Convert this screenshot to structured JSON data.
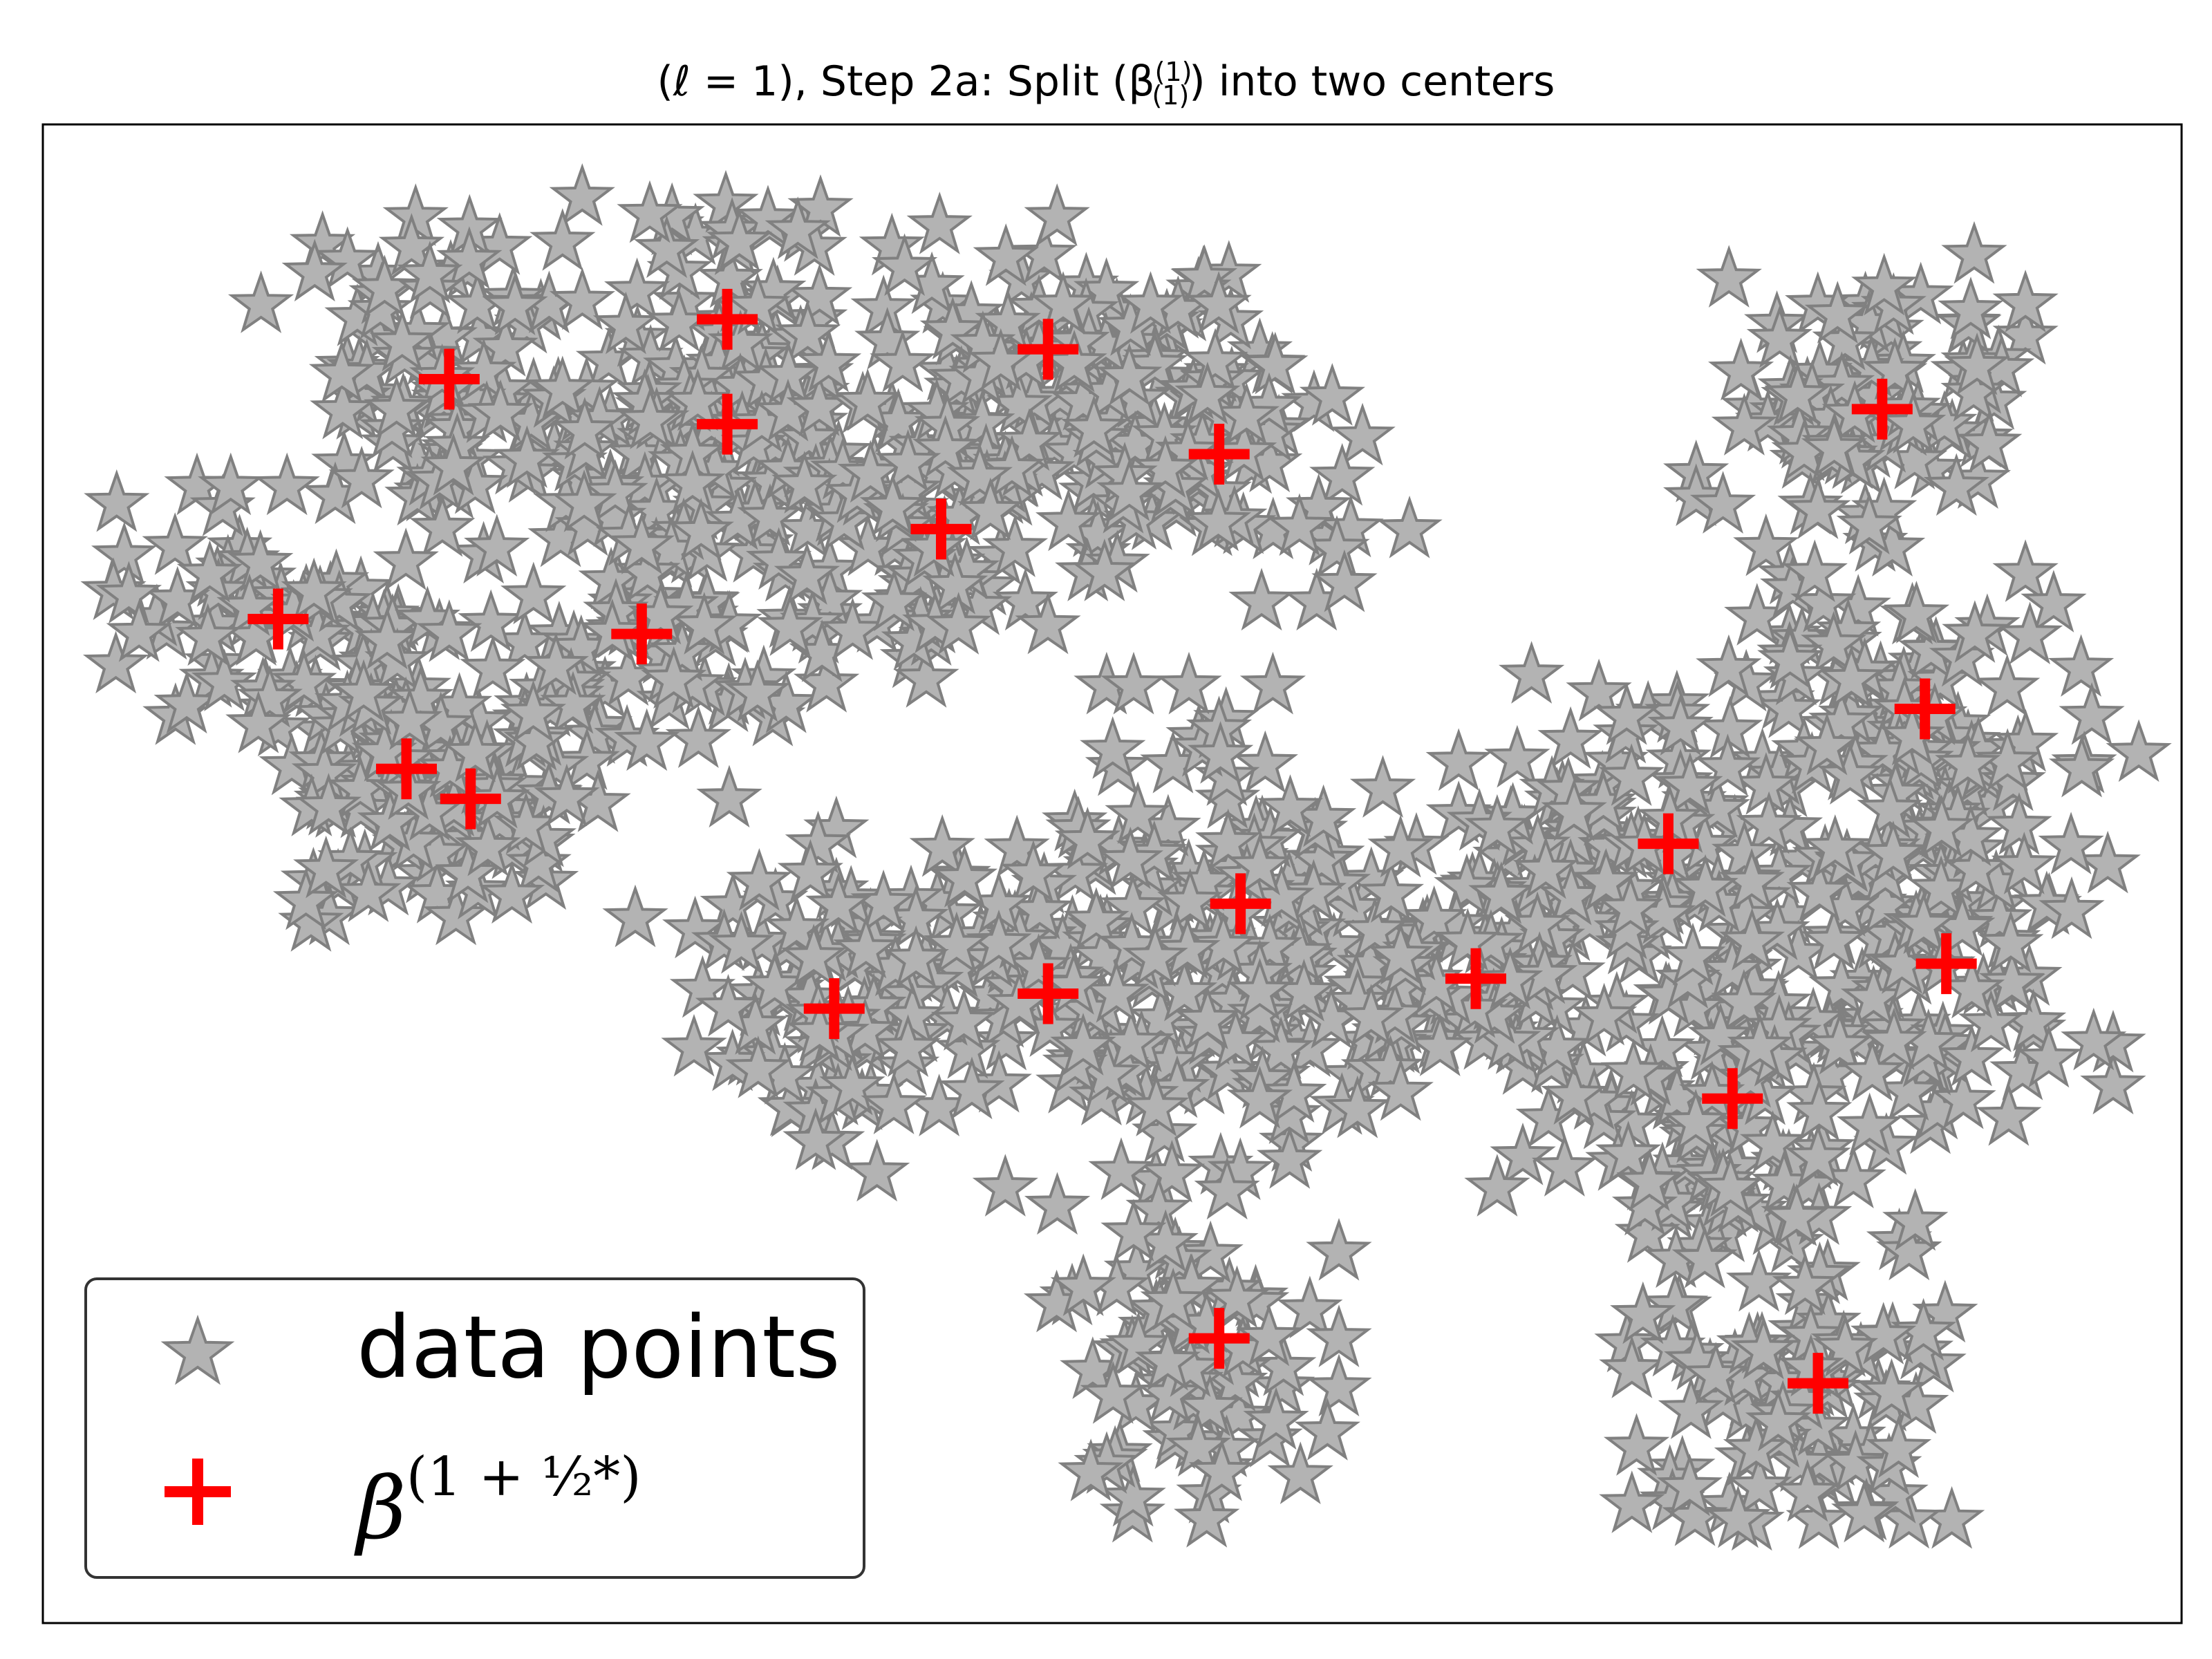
{
  "chart_data": {
    "type": "scatter",
    "title_text": "(ℓ = 1), Step 2a: Split (β",
    "title_sup": "(1)",
    "title_sub": "(1)",
    "title_tail": ") into two centers",
    "xlabel": "",
    "ylabel": "",
    "xlim": [
      0,
      1
    ],
    "ylim": [
      0,
      1
    ],
    "axis_ticks": false,
    "grid": false,
    "legend_placement": "lower-left",
    "colors": {
      "data_points_fill": "#b3b3b3",
      "data_points_edge": "#808080",
      "centers": "#ff0000"
    },
    "legend": {
      "data_points_label": "data points",
      "centers_base": "β",
      "centers_exponent": "(1 + ½*)"
    },
    "series": [
      {
        "name": "data points",
        "marker": "star",
        "clusters": [
          {
            "center": [
              0.19,
              0.83
            ],
            "spread": [
              0.04,
              0.055
            ],
            "n": 95
          },
          {
            "center": [
              0.32,
              0.86
            ],
            "spread": [
              0.035,
              0.045
            ],
            "n": 65
          },
          {
            "center": [
              0.32,
              0.79
            ],
            "spread": [
              0.035,
              0.035
            ],
            "n": 50
          },
          {
            "center": [
              0.11,
              0.67
            ],
            "spread": [
              0.035,
              0.04
            ],
            "n": 75
          },
          {
            "center": [
              0.28,
              0.67
            ],
            "spread": [
              0.04,
              0.06
            ],
            "n": 95
          },
          {
            "center": [
              0.17,
              0.57
            ],
            "spread": [
              0.035,
              0.045
            ],
            "n": 65
          },
          {
            "center": [
              0.2,
              0.55
            ],
            "spread": [
              0.035,
              0.04
            ],
            "n": 60
          },
          {
            "center": [
              0.47,
              0.84
            ],
            "spread": [
              0.045,
              0.05
            ],
            "n": 95
          },
          {
            "center": [
              0.54,
              0.78
            ],
            "spread": [
              0.045,
              0.045
            ],
            "n": 80
          },
          {
            "center": [
              0.42,
              0.73
            ],
            "spread": [
              0.04,
              0.05
            ],
            "n": 90
          },
          {
            "center": [
              0.85,
              0.81
            ],
            "spread": [
              0.035,
              0.05
            ],
            "n": 90
          },
          {
            "center": [
              0.87,
              0.61
            ],
            "spread": [
              0.04,
              0.06
            ],
            "n": 110
          },
          {
            "center": [
              0.88,
              0.44
            ],
            "spread": [
              0.04,
              0.06
            ],
            "n": 110
          },
          {
            "center": [
              0.75,
              0.51
            ],
            "spread": [
              0.04,
              0.06
            ],
            "n": 110
          },
          {
            "center": [
              0.78,
              0.34
            ],
            "spread": [
              0.04,
              0.07
            ],
            "n": 105
          },
          {
            "center": [
              0.82,
              0.15
            ],
            "spread": [
              0.035,
              0.055
            ],
            "n": 90
          },
          {
            "center": [
              0.66,
              0.43
            ],
            "spread": [
              0.045,
              0.04
            ],
            "n": 85
          },
          {
            "center": [
              0.56,
              0.46
            ],
            "spread": [
              0.04,
              0.075
            ],
            "n": 120
          },
          {
            "center": [
              0.47,
              0.43
            ],
            "spread": [
              0.045,
              0.045
            ],
            "n": 100
          },
          {
            "center": [
              0.37,
              0.42
            ],
            "spread": [
              0.035,
              0.045
            ],
            "n": 90
          },
          {
            "center": [
              0.54,
              0.18
            ],
            "spread": [
              0.03,
              0.055
            ],
            "n": 80
          }
        ],
        "outliers": [
          [
            0.045,
            0.66
          ],
          [
            0.98,
            0.58
          ],
          [
            0.45,
            0.29
          ],
          [
            0.39,
            0.3
          ],
          [
            0.68,
            0.53
          ],
          [
            0.68,
            0.29
          ],
          [
            0.15,
            0.62
          ],
          [
            0.49,
            0.1
          ],
          [
            0.77,
            0.09
          ],
          [
            0.51,
            0.26
          ],
          [
            0.83,
            0.31
          ],
          [
            0.19,
            0.66
          ]
        ]
      },
      {
        "name": "β^(1 + 1/2*)",
        "marker": "plus",
        "points": [
          [
            0.19,
            0.83
          ],
          [
            0.32,
            0.87
          ],
          [
            0.32,
            0.8
          ],
          [
            0.11,
            0.67
          ],
          [
            0.28,
            0.66
          ],
          [
            0.17,
            0.57
          ],
          [
            0.2,
            0.55
          ],
          [
            0.47,
            0.85
          ],
          [
            0.55,
            0.78
          ],
          [
            0.42,
            0.73
          ],
          [
            0.86,
            0.81
          ],
          [
            0.88,
            0.61
          ],
          [
            0.89,
            0.44
          ],
          [
            0.76,
            0.52
          ],
          [
            0.79,
            0.35
          ],
          [
            0.83,
            0.16
          ],
          [
            0.67,
            0.43
          ],
          [
            0.56,
            0.48
          ],
          [
            0.47,
            0.42
          ],
          [
            0.37,
            0.41
          ],
          [
            0.55,
            0.19
          ]
        ]
      }
    ]
  }
}
